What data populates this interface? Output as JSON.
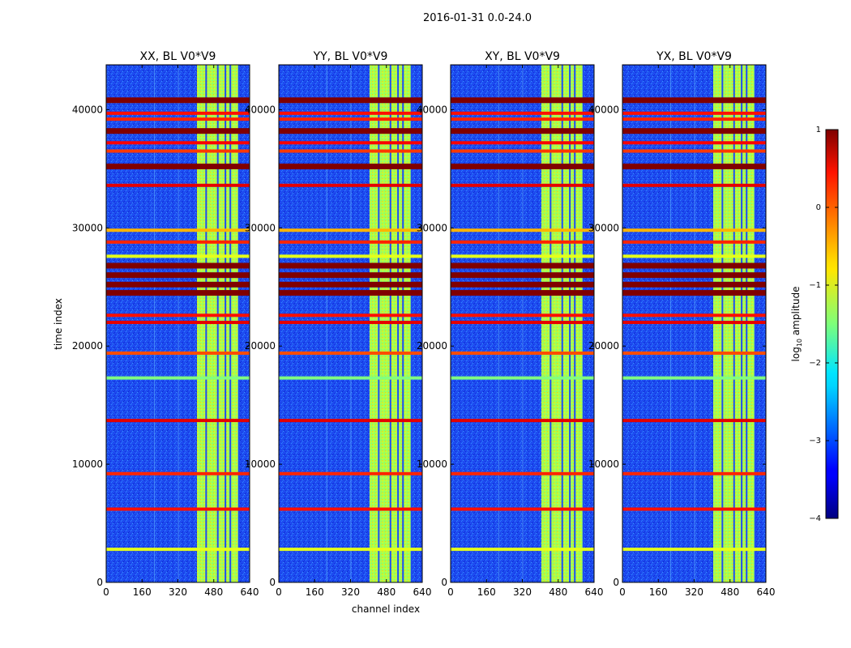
{
  "figure": {
    "suptitle": "2016-01-31 0.0-24.0"
  },
  "chart_data": {
    "type": "heatmap",
    "panels": [
      {
        "title": "XX, BL V0*V9"
      },
      {
        "title": "YY, BL V0*V9"
      },
      {
        "title": "XY, BL V0*V9"
      },
      {
        "title": "YX, BL V0*V9"
      }
    ],
    "xlabel": "channel index",
    "ylabel": "time index",
    "xlim": [
      0,
      640
    ],
    "ylim": [
      0,
      43800
    ],
    "xticks": [
      0,
      160,
      320,
      480,
      640
    ],
    "yticks": [
      0,
      10000,
      20000,
      30000,
      40000
    ],
    "colorbar": {
      "label": "log10 amplitude",
      "label_base": "log",
      "label_sub": "10",
      "label_rest": " amplitude",
      "range": [
        -4,
        1
      ],
      "ticks": [
        1,
        0,
        -1,
        -2,
        -3,
        -4
      ],
      "tick_labels": [
        "1",
        "0",
        "−1",
        "−2",
        "−3",
        "−4"
      ],
      "colormap": "jet"
    },
    "bright_channel_band": [
      405,
      592
    ],
    "bright_channel_lines": [
      446,
      498,
      532,
      554,
      592
    ],
    "flagged_rows": [
      {
        "t": 40800,
        "value": 1
      },
      {
        "t": 39700,
        "value": 0.3
      },
      {
        "t": 39200,
        "value": 0.2
      },
      {
        "t": 38200,
        "value": 1
      },
      {
        "t": 37200,
        "value": 0.4
      },
      {
        "t": 36500,
        "value": 0.1
      },
      {
        "t": 35200,
        "value": 1
      },
      {
        "t": 33600,
        "value": 0.5
      },
      {
        "t": 29800,
        "value": -0.5
      },
      {
        "t": 28800,
        "value": 0.2
      },
      {
        "t": 27600,
        "value": -1
      },
      {
        "t": 26800,
        "value": 1
      },
      {
        "t": 26000,
        "value": 1
      },
      {
        "t": 25200,
        "value": 1
      },
      {
        "t": 24500,
        "value": 1
      },
      {
        "t": 22600,
        "value": 0.3
      },
      {
        "t": 22000,
        "value": 0.5
      },
      {
        "t": 19400,
        "value": 0
      },
      {
        "t": 17300,
        "value": -1.5
      },
      {
        "t": 13700,
        "value": 0.5
      },
      {
        "t": 9200,
        "value": 0.2
      },
      {
        "t": 6200,
        "value": 0.3
      },
      {
        "t": 2800,
        "value": -1
      }
    ],
    "background_level": -3.2,
    "band_level": -1.2
  }
}
